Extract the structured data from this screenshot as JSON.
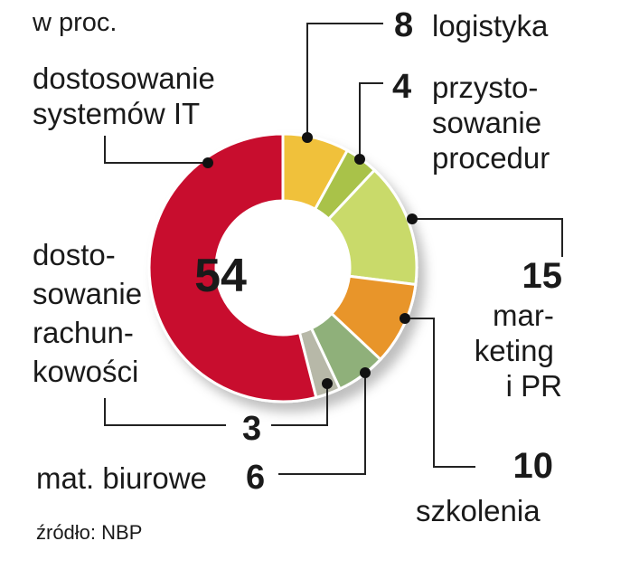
{
  "unit_label": "w proc.",
  "source": "źródło: NBP",
  "chart_data": {
    "type": "pie",
    "title": "",
    "unit": "w proc.",
    "slices": [
      {
        "label": "logistyka",
        "value": 8,
        "color": "#f0c13a"
      },
      {
        "label": "przystosowanie procedur",
        "value": 4,
        "color": "#a9c24a"
      },
      {
        "label": "marketing i PR",
        "value": 15,
        "color": "#c9da6a"
      },
      {
        "label": "szkolenia",
        "value": 10,
        "color": "#e8952a"
      },
      {
        "label": "mat. biurowe",
        "value": 6,
        "color": "#8fb07a"
      },
      {
        "label": "dostosowanie rachunkowości",
        "value": 3,
        "color": "#b7b8a8"
      },
      {
        "label": "dostosowanie systemów IT",
        "value": 54,
        "color": "#c8102e"
      }
    ]
  },
  "labels": {
    "logistyka": {
      "value": "8",
      "lines": [
        "logistyka"
      ]
    },
    "procedury": {
      "value": "4",
      "lines": [
        "przysto-",
        "sowanie",
        "procedur"
      ]
    },
    "marketing": {
      "value": "15",
      "lines": [
        "mar-",
        "keting",
        "i PR"
      ]
    },
    "szkolenia": {
      "value": "10",
      "lines": [
        "szkolenia"
      ]
    },
    "biurowe": {
      "value": "6",
      "lines": [
        "mat. biurowe"
      ]
    },
    "rachunkowosc": {
      "value": "3",
      "lines": [
        "dosto-",
        "sowanie",
        "rachun-",
        "kowości"
      ]
    },
    "it": {
      "value": "54",
      "lines": [
        "dostosowanie",
        "systemów IT"
      ]
    }
  }
}
